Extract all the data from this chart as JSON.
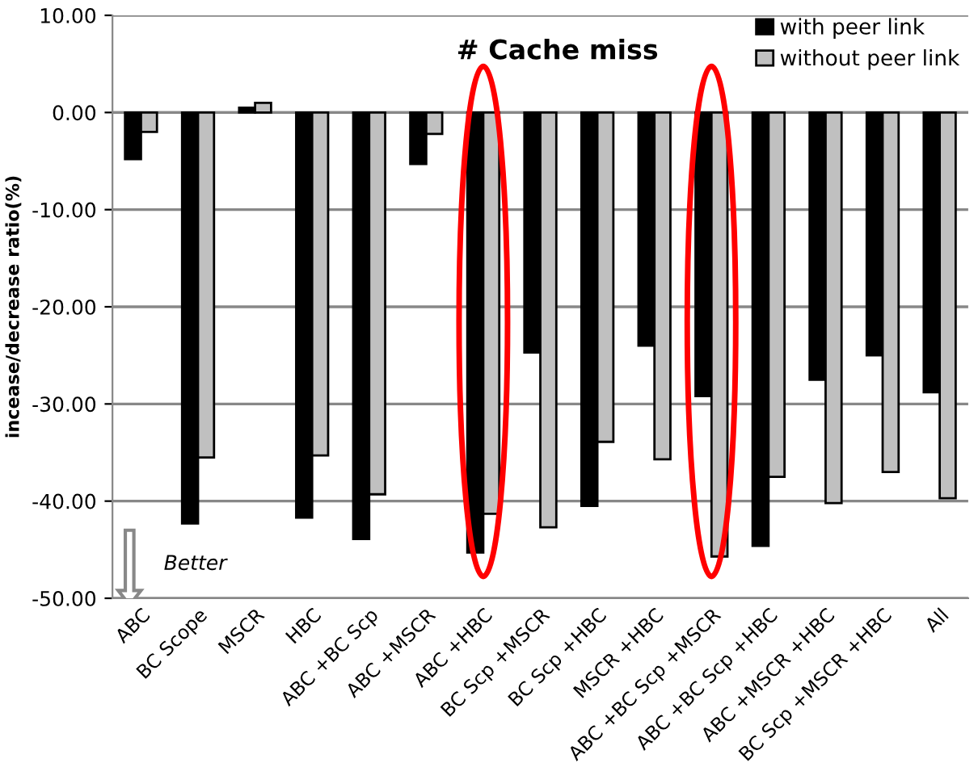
{
  "chart_data": {
    "type": "bar",
    "title": "# Cache miss",
    "ylabel": "incease/decrease ratio(%)",
    "categories": [
      "ABC",
      "BC Scope",
      "MSCR",
      "HBC",
      "ABC +BC Scp",
      "ABC +MSCR",
      "ABC +HBC",
      "BC Scp +MSCR",
      "BC Scp +HBC",
      "MSCR +HBC",
      "ABC +BC Scp +MSCR",
      "ABC +BC Scp +HBC",
      "ABC +MSCR +HBC",
      "BC Scp +MSCR +HBC",
      "All"
    ],
    "series": [
      {
        "name": "with peer link",
        "color": "#000000",
        "values": [
          -4.8,
          -42.3,
          0.5,
          -41.7,
          -43.9,
          -5.3,
          -45.3,
          -24.7,
          -40.5,
          -24.0,
          -29.2,
          -44.6,
          -27.5,
          -25.0,
          -28.8
        ]
      },
      {
        "name": "without peer link",
        "color": "#c0c0c0",
        "values": [
          -2.0,
          -35.5,
          1.0,
          -35.3,
          -39.3,
          -2.2,
          -41.3,
          -42.7,
          -33.9,
          -35.7,
          -45.7,
          -37.5,
          -40.2,
          -37.0,
          -39.7
        ]
      }
    ],
    "ylim": [
      -50,
      10
    ],
    "yticks": [
      {
        "value": -50,
        "label": "-50.00"
      },
      {
        "value": -40,
        "label": "-40.00"
      },
      {
        "value": -30,
        "label": "-30.00"
      },
      {
        "value": -20,
        "label": "-20.00"
      },
      {
        "value": -10,
        "label": "-10.00"
      },
      {
        "value": 0,
        "label": "0.00"
      },
      {
        "value": 10,
        "label": "10.00"
      }
    ],
    "grid": "y",
    "legend": "top right",
    "annotations": [
      "Better"
    ]
  }
}
